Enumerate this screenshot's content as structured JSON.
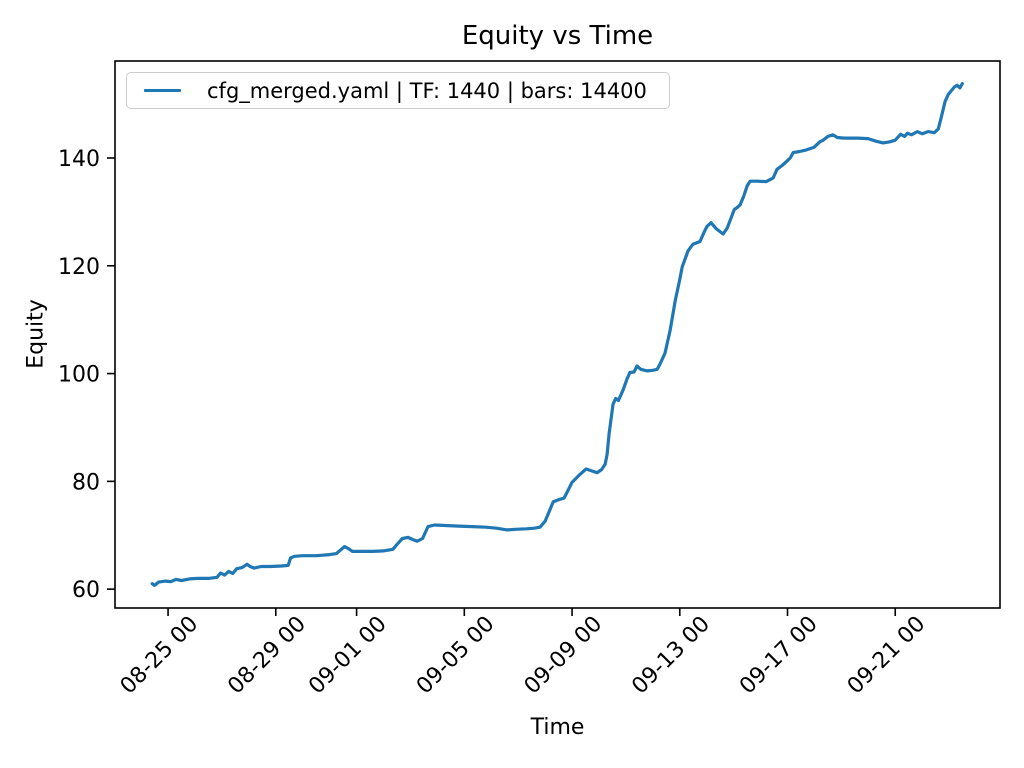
{
  "chart_data": {
    "type": "line",
    "title": "Equity vs Time",
    "xlabel": "Time",
    "ylabel": "Equity",
    "grid": false,
    "legend": {
      "position": "upper left",
      "entries": [
        {
          "label": "cfg_merged.yaml | TF: 1440 | bars: 14400",
          "color": "#1f77b4"
        }
      ]
    },
    "axes": {
      "x_unit": "days (ticks labeled MM-DD HH)",
      "xlim": [
        0.03,
        32.89
      ],
      "ylim": [
        56.5,
        158.0
      ],
      "x_ticks": [
        {
          "x": 2,
          "label": "08-25 00"
        },
        {
          "x": 6,
          "label": "08-29 00"
        },
        {
          "x": 9,
          "label": "09-01 00"
        },
        {
          "x": 13,
          "label": "09-05 00"
        },
        {
          "x": 17,
          "label": "09-09 00"
        },
        {
          "x": 21,
          "label": "09-13 00"
        },
        {
          "x": 25,
          "label": "09-17 00"
        },
        {
          "x": 29,
          "label": "09-21 00"
        }
      ],
      "y_ticks": [
        60,
        80,
        100,
        120,
        140
      ]
    },
    "series": [
      {
        "name": "cfg_merged.yaml | TF: 1440 | bars: 14400",
        "color": "#1f77b4",
        "line_width": 3.2,
        "points": [
          [
            1.41,
            61.0
          ],
          [
            1.5,
            60.7
          ],
          [
            1.65,
            61.3
          ],
          [
            1.9,
            61.5
          ],
          [
            2.1,
            61.4
          ],
          [
            2.3,
            61.8
          ],
          [
            2.5,
            61.6
          ],
          [
            2.8,
            61.9
          ],
          [
            3.1,
            62.0
          ],
          [
            3.5,
            62.0
          ],
          [
            3.82,
            62.2
          ],
          [
            3.95,
            63.0
          ],
          [
            4.1,
            62.6
          ],
          [
            4.25,
            63.3
          ],
          [
            4.4,
            62.9
          ],
          [
            4.55,
            63.8
          ],
          [
            4.75,
            64.0
          ],
          [
            4.93,
            64.6
          ],
          [
            5.05,
            64.2
          ],
          [
            5.2,
            63.9
          ],
          [
            5.45,
            64.2
          ],
          [
            5.8,
            64.2
          ],
          [
            6.2,
            64.3
          ],
          [
            6.46,
            64.4
          ],
          [
            6.55,
            65.8
          ],
          [
            6.7,
            66.1
          ],
          [
            7.0,
            66.2
          ],
          [
            7.5,
            66.2
          ],
          [
            8.0,
            66.4
          ],
          [
            8.25,
            66.6
          ],
          [
            8.39,
            67.2
          ],
          [
            8.55,
            67.9
          ],
          [
            8.7,
            67.5
          ],
          [
            8.85,
            67.0
          ],
          [
            9.2,
            67.0
          ],
          [
            9.6,
            67.0
          ],
          [
            10.0,
            67.1
          ],
          [
            10.35,
            67.4
          ],
          [
            10.5,
            68.3
          ],
          [
            10.7,
            69.4
          ],
          [
            10.91,
            69.6
          ],
          [
            11.1,
            69.2
          ],
          [
            11.25,
            68.9
          ],
          [
            11.45,
            69.4
          ],
          [
            11.65,
            71.6
          ],
          [
            11.9,
            71.9
          ],
          [
            12.3,
            71.8
          ],
          [
            12.8,
            71.7
          ],
          [
            13.3,
            71.6
          ],
          [
            13.8,
            71.5
          ],
          [
            14.2,
            71.3
          ],
          [
            14.59,
            71.0
          ],
          [
            14.9,
            71.1
          ],
          [
            15.3,
            71.2
          ],
          [
            15.6,
            71.3
          ],
          [
            15.81,
            71.5
          ],
          [
            16.0,
            72.6
          ],
          [
            16.15,
            74.4
          ],
          [
            16.3,
            76.2
          ],
          [
            16.5,
            76.6
          ],
          [
            16.7,
            76.9
          ],
          [
            16.82,
            78.0
          ],
          [
            17.0,
            79.8
          ],
          [
            17.3,
            81.3
          ],
          [
            17.52,
            82.3
          ],
          [
            17.7,
            82.0
          ],
          [
            17.93,
            81.6
          ],
          [
            18.1,
            82.2
          ],
          [
            18.23,
            83.2
          ],
          [
            18.3,
            85.0
          ],
          [
            18.38,
            89.0
          ],
          [
            18.46,
            92.0
          ],
          [
            18.52,
            94.3
          ],
          [
            18.62,
            95.4
          ],
          [
            18.72,
            95.0
          ],
          [
            18.9,
            97.0
          ],
          [
            19.04,
            99.0
          ],
          [
            19.15,
            100.2
          ],
          [
            19.3,
            100.3
          ],
          [
            19.41,
            101.4
          ],
          [
            19.55,
            100.8
          ],
          [
            19.79,
            100.5
          ],
          [
            20.0,
            100.6
          ],
          [
            20.16,
            100.8
          ],
          [
            20.27,
            101.8
          ],
          [
            20.45,
            103.8
          ],
          [
            20.64,
            108.0
          ],
          [
            20.83,
            113.5
          ],
          [
            21.0,
            117.5
          ],
          [
            21.09,
            119.8
          ],
          [
            21.31,
            122.8
          ],
          [
            21.49,
            124.0
          ],
          [
            21.75,
            124.5
          ],
          [
            21.9,
            126.2
          ],
          [
            22.01,
            127.3
          ],
          [
            22.16,
            128.0
          ],
          [
            22.35,
            126.9
          ],
          [
            22.61,
            125.9
          ],
          [
            22.76,
            127.0
          ],
          [
            22.9,
            128.8
          ],
          [
            23.02,
            130.4
          ],
          [
            23.15,
            130.9
          ],
          [
            23.24,
            131.3
          ],
          [
            23.38,
            133.0
          ],
          [
            23.5,
            134.8
          ],
          [
            23.61,
            135.7
          ],
          [
            23.9,
            135.7
          ],
          [
            24.2,
            135.6
          ],
          [
            24.47,
            136.3
          ],
          [
            24.61,
            137.9
          ],
          [
            24.8,
            138.6
          ],
          [
            24.95,
            139.3
          ],
          [
            25.1,
            140.0
          ],
          [
            25.21,
            141.0
          ],
          [
            25.45,
            141.2
          ],
          [
            25.7,
            141.5
          ],
          [
            25.99,
            142.0
          ],
          [
            26.2,
            143.0
          ],
          [
            26.32,
            143.3
          ],
          [
            26.5,
            144.0
          ],
          [
            26.69,
            144.3
          ],
          [
            26.85,
            143.8
          ],
          [
            27.1,
            143.7
          ],
          [
            27.6,
            143.7
          ],
          [
            27.99,
            143.6
          ],
          [
            28.3,
            143.1
          ],
          [
            28.55,
            142.8
          ],
          [
            28.8,
            143.0
          ],
          [
            29.0,
            143.3
          ],
          [
            29.2,
            144.4
          ],
          [
            29.35,
            144.0
          ],
          [
            29.45,
            144.6
          ],
          [
            29.6,
            144.3
          ],
          [
            29.82,
            144.9
          ],
          [
            30.0,
            144.5
          ],
          [
            30.22,
            144.9
          ],
          [
            30.45,
            144.7
          ],
          [
            30.6,
            145.4
          ],
          [
            30.72,
            147.8
          ],
          [
            30.85,
            150.5
          ],
          [
            30.97,
            151.8
          ],
          [
            31.1,
            152.6
          ],
          [
            31.2,
            153.2
          ],
          [
            31.3,
            153.5
          ],
          [
            31.4,
            153.0
          ],
          [
            31.49,
            153.8
          ]
        ]
      }
    ],
    "colors": {
      "line": "#1f77b4",
      "axes": "#000000",
      "legend_border": "#cccccc",
      "background": "#ffffff"
    }
  }
}
